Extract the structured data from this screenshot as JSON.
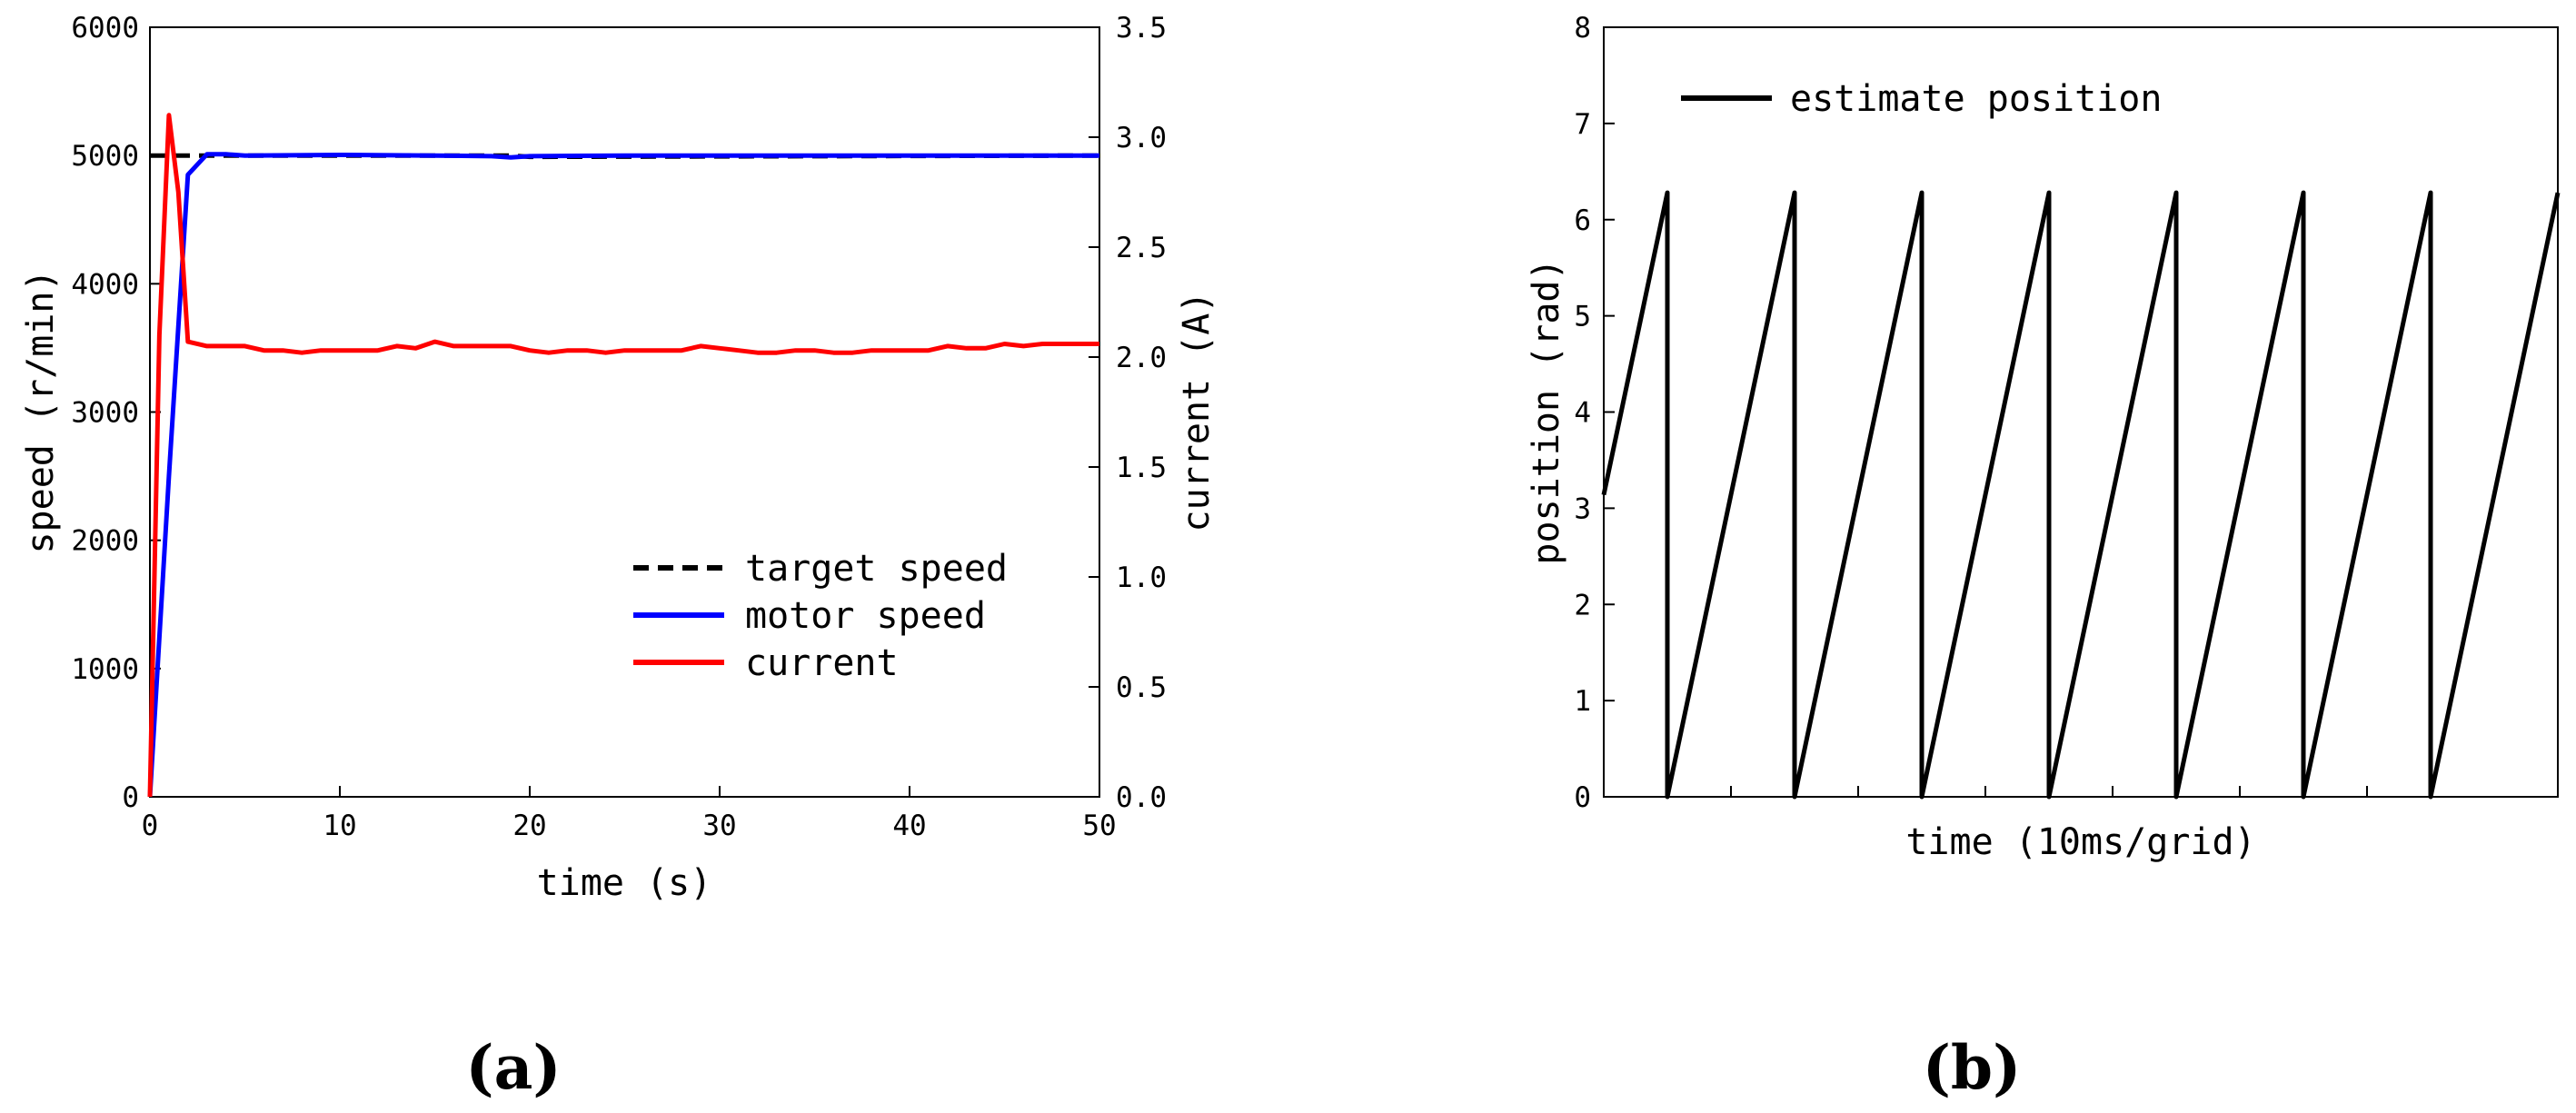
{
  "chart_data": [
    {
      "type": "line",
      "panel_label": "(a)",
      "xlabel": "time (s)",
      "ylabel": "speed (r/min)",
      "y2label": "current (A)",
      "xlim": [
        0,
        50
      ],
      "ylim": [
        0,
        6000
      ],
      "y2lim": [
        0,
        3.5
      ],
      "xticks": [
        "0",
        "10",
        "20",
        "30",
        "40",
        "50"
      ],
      "yticks": [
        "0",
        "1000",
        "2000",
        "3000",
        "4000",
        "5000",
        "6000"
      ],
      "y2ticks": [
        "0.0",
        "0.5",
        "1.0",
        "1.5",
        "2.0",
        "2.5",
        "3.0",
        "3.5"
      ],
      "legend_position": "lower-right",
      "grid": false,
      "series": [
        {
          "name": "target speed",
          "axis": "left",
          "color": "#000000",
          "style": "dashed",
          "x": [
            0,
            19,
            20,
            50
          ],
          "y": [
            5000,
            5000,
            4990,
            5000
          ]
        },
        {
          "name": "motor speed",
          "axis": "left",
          "color": "#0000ff",
          "style": "solid",
          "x": [
            0,
            1,
            2,
            3,
            4,
            5,
            10,
            15,
            18,
            19,
            20,
            25,
            30,
            35,
            40,
            45,
            50
          ],
          "y": [
            0,
            2500,
            4850,
            5010,
            5010,
            5000,
            5005,
            5000,
            4995,
            4985,
            4995,
            5000,
            5000,
            5000,
            5000,
            5000,
            5000
          ]
        },
        {
          "name": "current",
          "axis": "right",
          "color": "#ff0000",
          "style": "solid",
          "x": [
            0,
            0.5,
            1,
            1.5,
            2,
            3,
            4,
            5,
            6,
            7,
            8,
            9,
            10,
            11,
            12,
            13,
            14,
            15,
            16,
            17,
            18,
            19,
            20,
            21,
            22,
            23,
            24,
            25,
            26,
            27,
            28,
            29,
            30,
            31,
            32,
            33,
            34,
            35,
            36,
            37,
            38,
            39,
            40,
            41,
            42,
            43,
            44,
            45,
            46,
            47,
            48,
            49,
            50
          ],
          "y": [
            0,
            2.1,
            3.1,
            2.75,
            2.07,
            2.05,
            2.05,
            2.05,
            2.03,
            2.03,
            2.02,
            2.03,
            2.03,
            2.03,
            2.03,
            2.05,
            2.04,
            2.07,
            2.05,
            2.05,
            2.05,
            2.05,
            2.03,
            2.02,
            2.03,
            2.03,
            2.02,
            2.03,
            2.03,
            2.03,
            2.03,
            2.05,
            2.04,
            2.03,
            2.02,
            2.02,
            2.03,
            2.03,
            2.02,
            2.02,
            2.03,
            2.03,
            2.03,
            2.03,
            2.05,
            2.04,
            2.04,
            2.06,
            2.05,
            2.06,
            2.06,
            2.06,
            2.06
          ]
        }
      ]
    },
    {
      "type": "line",
      "panel_label": "(b)",
      "xlabel": "time (10ms/grid)",
      "ylabel": "position (rad)",
      "ylim": [
        0,
        8
      ],
      "yticks": [
        "0",
        "1",
        "2",
        "3",
        "4",
        "5",
        "6",
        "7",
        "8"
      ],
      "xlim": [
        0,
        15
      ],
      "x_tick_positions": [
        2,
        4,
        6,
        8,
        10,
        12
      ],
      "x_tick_labels_shown": false,
      "legend_position": "top-left",
      "grid": false,
      "series": [
        {
          "name": "estimate position",
          "color": "#000000",
          "style": "solid",
          "x": [
            0,
            1,
            1,
            3,
            3,
            5,
            5,
            7,
            7,
            9,
            9,
            11,
            11,
            13,
            13,
            15
          ],
          "y": [
            3.14,
            6.28,
            0,
            6.28,
            0,
            6.28,
            0,
            6.28,
            0,
            6.28,
            0,
            6.28,
            0,
            6.28,
            0,
            6.28
          ]
        }
      ]
    }
  ]
}
